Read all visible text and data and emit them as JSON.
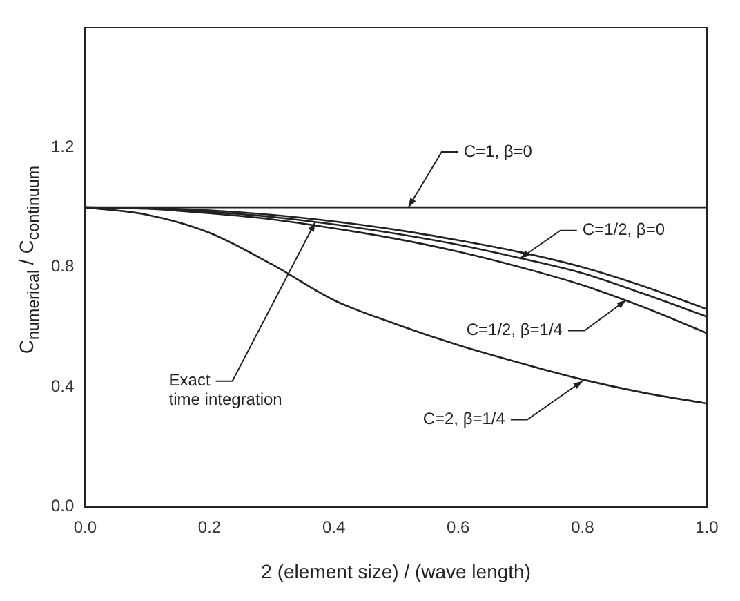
{
  "chart_data": {
    "type": "line",
    "xlabel": "2 (element size) / (wave length)",
    "ylabel": "C$_{numerical}$ / C$_{continuum}$",
    "x": [
      0,
      0.1,
      0.2,
      0.3,
      0.4,
      0.5,
      0.6,
      0.7,
      0.8,
      0.9,
      1.0
    ],
    "series": [
      {
        "color": "#222222",
        "values": [
          1,
          1,
          1,
          1,
          1,
          1,
          1,
          1,
          1,
          1,
          1
        ]
      },
      {
        "color": "#222222",
        "values": [
          1,
          0.998,
          0.99,
          0.975,
          0.953,
          0.925,
          0.89,
          0.85,
          0.8,
          0.735,
          0.66
        ]
      },
      {
        "color": "#222222",
        "values": [
          1,
          0.997,
          0.985,
          0.968,
          0.943,
          0.912,
          0.875,
          0.83,
          0.78,
          0.71,
          0.635
        ]
      },
      {
        "color": "#222222",
        "values": [
          1,
          0.995,
          0.98,
          0.96,
          0.93,
          0.895,
          0.852,
          0.8,
          0.74,
          0.665,
          0.58
        ]
      },
      {
        "color": "#222222",
        "values": [
          1,
          0.975,
          0.915,
          0.81,
          0.69,
          0.61,
          0.54,
          0.48,
          0.425,
          0.38,
          0.345
        ]
      }
    ],
    "xlim": [
      0,
      1
    ],
    "xticks": [
      {
        "value": 0,
        "label": "0.0"
      },
      {
        "value": 0.2,
        "label": "0.2"
      },
      {
        "value": 0.4,
        "label": "0.4"
      },
      {
        "value": 0.6,
        "label": "0.6"
      },
      {
        "value": 0.8,
        "label": "0.8"
      },
      {
        "value": 1,
        "label": "1.0"
      }
    ],
    "ylim": [
      0,
      1.6
    ],
    "yticks": [
      {
        "value": 0,
        "label": "0.0"
      },
      {
        "value": 0.4,
        "label": "0.4"
      },
      {
        "value": 0.8,
        "label": "0.8"
      },
      {
        "value": 1.2,
        "label": "1.2"
      }
    ],
    "grid": false,
    "legend": false,
    "marker": "none",
    "line_style": "solid",
    "annotations": [
      {
        "text": "C=1, β=0",
        "x": 0.52,
        "y": 1.0
      },
      {
        "text": "C=1/2, β=0",
        "x": 0.7,
        "y": 0.83
      },
      {
        "text": "Exact time integration",
        "x": 0.37,
        "y": 0.95
      },
      {
        "text": "C=1/2, β=1/4",
        "x": 0.87,
        "y": 0.69
      },
      {
        "text": "C=2, β=1/4",
        "x": 0.8,
        "y": 0.42
      }
    ]
  }
}
